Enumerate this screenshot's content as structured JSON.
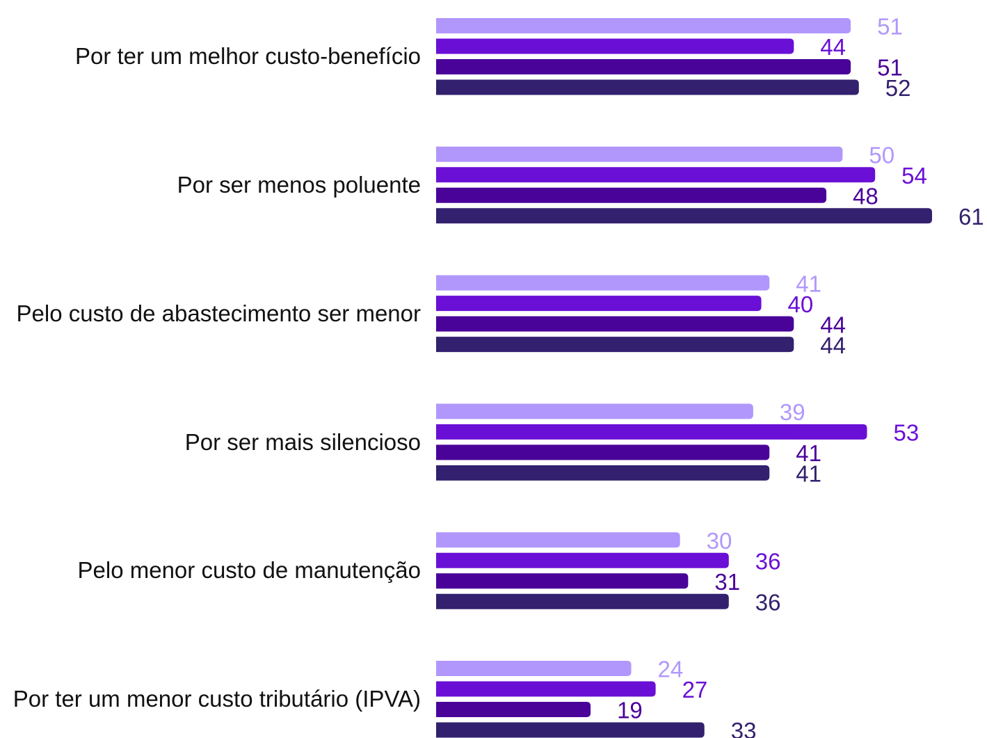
{
  "chart_data": {
    "type": "bar",
    "orientation": "horizontal",
    "categories": [
      "Por ter um melhor custo-benefício",
      "Por ser menos poluente",
      "Pelo custo de abastecimento ser menor",
      "Por ser mais silencioso",
      "Pelo menor custo de manutenção",
      "Por ter um menor custo tributário (IPVA)"
    ],
    "series": [
      {
        "color": "#b197fc",
        "values": [
          51,
          50,
          41,
          39,
          30,
          24
        ]
      },
      {
        "color": "#6a0fd6",
        "values": [
          44,
          54,
          40,
          53,
          36,
          27
        ]
      },
      {
        "color": "#4a0399",
        "values": [
          51,
          48,
          44,
          41,
          31,
          19
        ]
      },
      {
        "color": "#33206e",
        "values": [
          52,
          61,
          44,
          41,
          36,
          33
        ]
      }
    ]
  }
}
